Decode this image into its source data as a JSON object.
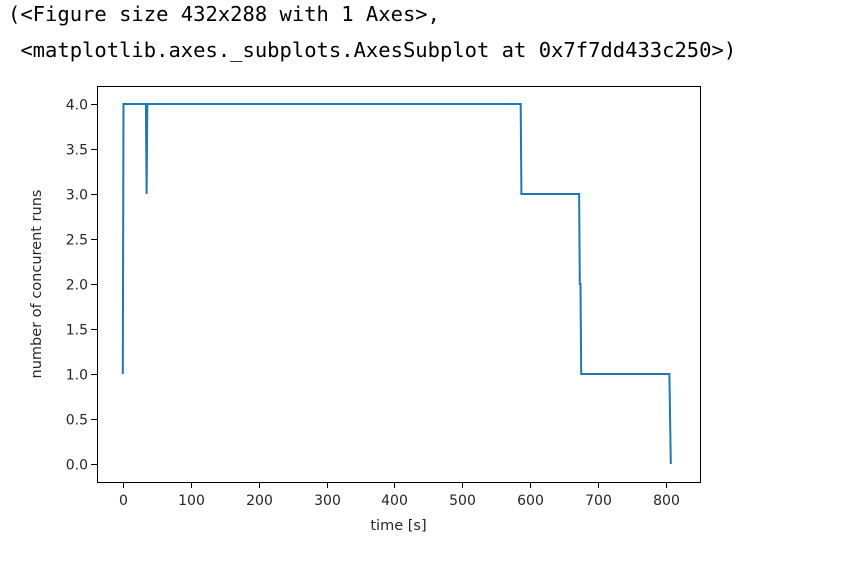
{
  "output": {
    "line1": "(<Figure size 432x288 with 1 Axes>,",
    "line2": " <matplotlib.axes._subplots.AxesSubplot at 0x7f7dd433c250>)"
  },
  "chart_data": {
    "type": "line",
    "title": "",
    "xlabel": "time [s]",
    "ylabel": "number of concurent runs",
    "xlim": [
      -38,
      850
    ],
    "ylim": [
      -0.2,
      4.2
    ],
    "xticks": [
      0,
      100,
      200,
      300,
      400,
      500,
      600,
      700,
      800
    ],
    "xtick_labels": [
      "0",
      "100",
      "200",
      "300",
      "400",
      "500",
      "600",
      "700",
      "800"
    ],
    "yticks": [
      0.0,
      0.5,
      1.0,
      1.5,
      2.0,
      2.5,
      3.0,
      3.5,
      4.0
    ],
    "ytick_labels": [
      "0.0",
      "0.5",
      "1.0",
      "1.5",
      "2.0",
      "2.5",
      "3.0",
      "3.5",
      "4.0"
    ],
    "grid": false,
    "line_color": "#1f77b4",
    "series": [
      {
        "x": [
          0,
          1,
          34,
          35,
          36,
          586,
          587,
          672,
          673,
          674,
          675,
          676,
          677,
          805,
          806,
          807
        ],
        "y": [
          1,
          4,
          4,
          3,
          4,
          4,
          3,
          3,
          2,
          2,
          1,
          1,
          1,
          1,
          0.5,
          0
        ]
      }
    ]
  }
}
